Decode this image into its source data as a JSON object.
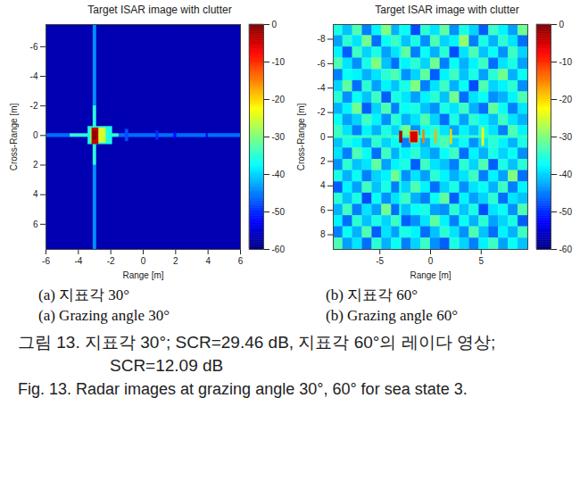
{
  "chart_data": [
    {
      "type": "heatmap",
      "title": "Target ISAR image with clutter",
      "xlabel": "Range [m]",
      "ylabel": "Cross-Range [m]",
      "xlim": [
        -6,
        6
      ],
      "ylim": [
        7.7,
        -7.5
      ],
      "xticks": [
        -6,
        -4,
        -2,
        0,
        2,
        4,
        6
      ],
      "yticks": [
        -6,
        -4,
        -2,
        0,
        2,
        4,
        6
      ],
      "color": "jet",
      "color_range": [
        -60,
        0
      ],
      "color_ticks": [
        0,
        -10,
        -20,
        -30,
        -40,
        -50,
        -60
      ],
      "background": -57,
      "cells": [
        {
          "x1": -6,
          "x2": 6,
          "y1": -0.12,
          "y2": 0.12,
          "value": -46
        },
        {
          "x1": -3.08,
          "x2": -2.88,
          "y1": -7.5,
          "y2": 7.7,
          "value": -44
        },
        {
          "x1": -3.08,
          "x2": -2.9,
          "y1": -2,
          "y2": 2,
          "value": -35
        },
        {
          "x1": -4.5,
          "x2": -1.5,
          "y1": -0.1,
          "y2": 0.1,
          "value": -35
        },
        {
          "x1": -1.1,
          "x2": -0.9,
          "y1": -0.4,
          "y2": 0.4,
          "value": -48
        },
        {
          "x1": 0.8,
          "x2": 0.95,
          "y1": -0.3,
          "y2": 0.3,
          "value": -50
        },
        {
          "x1": 1.9,
          "x2": 2.05,
          "y1": -0.2,
          "y2": 0.2,
          "value": -52
        },
        {
          "x1": 3.9,
          "x2": 4.0,
          "y1": -0.15,
          "y2": 0.15,
          "value": -53
        },
        {
          "x1": -3.4,
          "x2": -1.9,
          "y1": -0.6,
          "y2": 0.6,
          "value": -36
        },
        {
          "x1": -3.2,
          "x2": -2.3,
          "y1": -0.5,
          "y2": 0.5,
          "value": -25
        },
        {
          "x1": -3.15,
          "x2": -2.75,
          "y1": -0.5,
          "y2": 0.6,
          "value": -4
        },
        {
          "x1": -3.1,
          "x2": -2.85,
          "y1": -0.3,
          "y2": 0.3,
          "value": -1
        }
      ],
      "subcaption_ko": "(a) 지표각 30°",
      "subcaption_en": "(a) Grazing angle 30°"
    },
    {
      "type": "heatmap",
      "title": "Target ISAR image with clutter",
      "xlabel": "Range [m]",
      "ylabel": "Cross-Range [m]",
      "xlim": [
        -9.6,
        9.6
      ],
      "ylim": [
        9.2,
        -9.2
      ],
      "xticks": [
        -5,
        0,
        5
      ],
      "yticks": [
        -8,
        -6,
        -4,
        -2,
        0,
        2,
        4,
        6,
        8
      ],
      "color": "jet",
      "color_range": [
        -60,
        0
      ],
      "color_ticks": [
        0,
        -10,
        -20,
        -30,
        -40,
        -50,
        -60
      ],
      "clutter": [
        [
          -36,
          -41,
          -33,
          -45,
          -38,
          -30,
          -42,
          -37,
          -48,
          -35,
          -39,
          -32,
          -44,
          -36,
          -40,
          -47,
          -34,
          -38,
          -43,
          -31
        ],
        [
          -43,
          -35,
          -39,
          -31,
          -46,
          -37,
          -34,
          -41,
          -36,
          -44,
          -33,
          -40,
          -38,
          -29,
          -45,
          -36,
          -42,
          -35,
          -39,
          -46
        ],
        [
          -38,
          -47,
          -34,
          -40,
          -36,
          -43,
          -39,
          -32,
          -45,
          -37,
          -42,
          -35,
          -48,
          -39,
          -33,
          -41,
          -37,
          -44,
          -34,
          -40
        ],
        [
          -33,
          -39,
          -44,
          -36,
          -30,
          -41,
          -46,
          -38,
          -35,
          -40,
          -31,
          -45,
          -37,
          -42,
          -38,
          -34,
          -46,
          -39,
          -36,
          -43
        ],
        [
          -45,
          -37,
          -38,
          -42,
          -39,
          -35,
          -33,
          -44,
          -40,
          -32,
          -47,
          -38,
          -34,
          -41,
          -36,
          -43,
          -35,
          -31,
          -42,
          -37
        ],
        [
          -40,
          -32,
          -46,
          -35,
          -43,
          -38,
          -41,
          -36,
          -30,
          -45,
          -39,
          -34,
          -42,
          -37,
          -48,
          -33,
          -40,
          -38,
          -35,
          -44
        ],
        [
          -35,
          -44,
          -37,
          -41,
          -34,
          -47,
          -36,
          -39,
          -43,
          -38,
          -35,
          -41,
          -31,
          -46,
          -39,
          -37,
          -44,
          -42,
          -38,
          -33
        ],
        [
          -42,
          -38,
          -31,
          -47,
          -40,
          -33,
          -45,
          -37,
          -36,
          -41,
          -44,
          -36,
          -39,
          -34,
          -42,
          -46,
          -32,
          -37,
          -45,
          -39
        ],
        [
          -37,
          -43,
          -40,
          -34,
          -38,
          -44,
          -35,
          -42,
          -39,
          -33,
          -40,
          -46,
          -36,
          -43,
          -35,
          -38,
          -41,
          -34,
          -39,
          -42
        ],
        [
          -34,
          -39,
          -45,
          -38,
          -42,
          -36,
          -40,
          -31,
          -44,
          -37,
          -35,
          -39,
          -43,
          -38,
          -41,
          -36,
          -39,
          -45,
          -33,
          -38
        ],
        [
          -41,
          -36,
          -38,
          -43,
          -35,
          -40,
          -37,
          -45,
          -38,
          -42,
          -36,
          -33,
          -40,
          -37,
          -44,
          -39,
          -35,
          -38,
          -42,
          -36
        ],
        [
          -39,
          -45,
          -33,
          -37,
          -46,
          -34,
          -42,
          -38,
          -35,
          -40,
          -43,
          -37,
          -34,
          -46,
          -38,
          -42,
          -36,
          -40,
          -37,
          -44
        ],
        [
          -44,
          -35,
          -41,
          -39,
          -32,
          -43,
          -38,
          -36,
          -47,
          -34,
          -39,
          -41,
          -45,
          -35,
          -40,
          -33,
          -47,
          -36,
          -41,
          -35
        ],
        [
          -36,
          -42,
          -37,
          -45,
          -40,
          -38,
          -31,
          -44,
          -39,
          -43,
          -35,
          -38,
          -42,
          -39,
          -34,
          -45,
          -38,
          -43,
          -30,
          -46
        ],
        [
          -47,
          -38,
          -43,
          -34,
          -41,
          -36,
          -45,
          -40,
          -33,
          -38,
          -46,
          -40,
          -36,
          -44,
          -39,
          -37,
          -42,
          -34,
          -45,
          -38
        ],
        [
          -35,
          -41,
          -36,
          -48,
          -37,
          -44,
          -39,
          -34,
          -42,
          -45,
          -37,
          -32,
          -47,
          -38,
          -43,
          -40,
          -35,
          -46,
          -39,
          -41
        ],
        [
          -42,
          -34,
          -45,
          -39,
          -43,
          -31,
          -46,
          -41,
          -37,
          -36,
          -43,
          -44,
          -35,
          -41,
          -36,
          -48,
          -39,
          -37,
          -44,
          -33
        ],
        [
          -38,
          -46,
          -35,
          -41,
          -36,
          -40,
          -34,
          -47,
          -44,
          -39,
          -32,
          -38,
          -45,
          -37,
          -42,
          -35,
          -43,
          -40,
          -36,
          -47
        ],
        [
          -45,
          -37,
          -42,
          -33,
          -47,
          -39,
          -43,
          -36,
          -38,
          -46,
          -41,
          -35,
          -39,
          -44,
          -33,
          -41,
          -46,
          -38,
          -42,
          -34
        ],
        [
          -33,
          -43,
          -39,
          -46,
          -35,
          -42,
          -37,
          -45,
          -40,
          -34,
          -44,
          -47,
          -36,
          -40,
          -45,
          -38,
          -34,
          -43,
          -37,
          -41
        ]
      ],
      "cells": [
        {
          "x1": -3.05,
          "x2": -2.85,
          "y1": -9.2,
          "y2": 9.2,
          "value": -36
        },
        {
          "x1": -9.6,
          "x2": 9.6,
          "y1": -0.1,
          "y2": 0.1,
          "value": -34
        },
        {
          "x1": -3.05,
          "x2": -2.75,
          "y1": -0.45,
          "y2": 0.5,
          "value": -3
        },
        {
          "x1": -2.05,
          "x2": -1.15,
          "y1": -0.5,
          "y2": 0.5,
          "value": -18
        },
        {
          "x1": -1.95,
          "x2": -1.25,
          "y1": -0.4,
          "y2": 0.45,
          "value": -5
        },
        {
          "x1": -0.75,
          "x2": -0.55,
          "y1": -0.55,
          "y2": 0.55,
          "value": -15
        },
        {
          "x1": 0.45,
          "x2": 0.65,
          "y1": -0.55,
          "y2": 0.55,
          "value": -18
        },
        {
          "x1": 1.95,
          "x2": 2.15,
          "y1": -0.6,
          "y2": 0.6,
          "value": -20
        },
        {
          "x1": 5.1,
          "x2": 5.3,
          "y1": -0.75,
          "y2": 0.75,
          "value": -22
        }
      ],
      "subcaption_ko": "(b) 지표각 60°",
      "subcaption_en": "(b) Grazing angle 60°"
    }
  ],
  "caption_ko": "그림 13. 지표각 30°; SCR=29.46 dB, 지표각 60°의 레이다 영상; SCR=12.09 dB",
  "caption_en": "Fig. 13. Radar images at grazing angle 30°, 60° for sea state 3."
}
